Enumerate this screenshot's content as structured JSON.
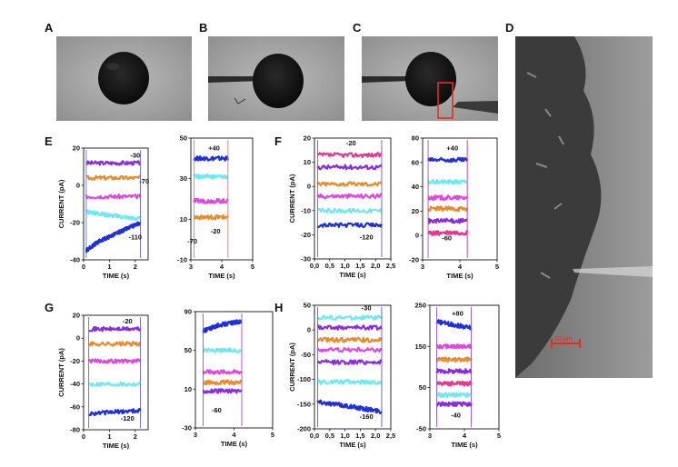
{
  "panel_labels": {
    "A": "A",
    "B": "B",
    "C": "C",
    "D": "D",
    "E": "E",
    "F": "F",
    "G": "G",
    "H": "H"
  },
  "scale_bar": "10 µm",
  "colors": {
    "navy": "#1f2fd9",
    "cyan": "#6ee9ef",
    "magenta": "#e046e0",
    "orange": "#ea8a2b",
    "violet": "#8a2be2",
    "pink": "#e03a8f",
    "red": "#e0301e"
  },
  "chart_data": [
    {
      "id": "E-left",
      "type": "line",
      "xlabel": "TIME (s)",
      "ylabel": "CURRENT (pA)",
      "xlim": [
        0,
        2.5
      ],
      "ylim": [
        -40,
        20
      ],
      "xticks": [
        "0",
        "1",
        "2"
      ],
      "xtickvals": [
        0,
        1,
        2
      ],
      "yticks": [
        "-40",
        "-20",
        "0",
        "20"
      ],
      "ytickvals": [
        -40,
        -20,
        0,
        20
      ],
      "annotations": [
        {
          "text": "-30",
          "x": 2.0,
          "y": 15
        },
        {
          "text": "-70",
          "x": 2.35,
          "y": 1
        },
        {
          "text": "-110",
          "x": 2.0,
          "y": -29
        }
      ],
      "series": [
        {
          "color": "violet",
          "points": [
            [
              0.1,
              12
            ],
            [
              2.2,
              12
            ]
          ]
        },
        {
          "color": "orange",
          "points": [
            [
              0.1,
              4
            ],
            [
              2.2,
              4
            ]
          ]
        },
        {
          "color": "magenta",
          "points": [
            [
              0.1,
              -6
            ],
            [
              2.2,
              -6
            ]
          ]
        },
        {
          "color": "cyan",
          "points": [
            [
              0.1,
              -14
            ],
            [
              1.0,
              -16
            ],
            [
              2.2,
              -18
            ]
          ]
        },
        {
          "color": "navy",
          "points": [
            [
              0.1,
              -35
            ],
            [
              0.6,
              -30
            ],
            [
              1.4,
              -25
            ],
            [
              2.2,
              -20
            ]
          ]
        }
      ]
    },
    {
      "id": "E-right",
      "type": "line",
      "xlabel": "TIME (s)",
      "ylabel": "",
      "xlim": [
        3,
        5
      ],
      "ylim": [
        -10,
        50
      ],
      "xticks": [
        "3",
        "4",
        "5"
      ],
      "xtickvals": [
        3,
        4,
        5
      ],
      "yticks": [
        "-10",
        "10",
        "30",
        "50"
      ],
      "ytickvals": [
        -10,
        10,
        30,
        50
      ],
      "annotations": [
        {
          "text": "+40",
          "x": 3.75,
          "y": 44
        },
        {
          "text": "-70",
          "x": 3.05,
          "y": -2
        },
        {
          "text": "-20",
          "x": 3.8,
          "y": 3
        }
      ],
      "series": [
        {
          "color": "navy",
          "points": [
            [
              3.1,
              40
            ],
            [
              4.2,
              40
            ]
          ]
        },
        {
          "color": "cyan",
          "points": [
            [
              3.1,
              31
            ],
            [
              4.2,
              31
            ]
          ]
        },
        {
          "color": "magenta",
          "points": [
            [
              3.1,
              19
            ],
            [
              4.2,
              19
            ]
          ]
        },
        {
          "color": "orange",
          "points": [
            [
              3.1,
              11
            ],
            [
              4.2,
              11
            ]
          ]
        }
      ]
    },
    {
      "id": "F-left",
      "type": "line",
      "xlabel": "TIME (s)",
      "ylabel": "CURRENT (pA)",
      "xlim": [
        0,
        2.5
      ],
      "ylim": [
        -30,
        20
      ],
      "xticks": [
        "0,0",
        "0,5",
        "1,0",
        "1,5",
        "2,0",
        "2,5"
      ],
      "xtickvals": [
        0,
        0.5,
        1,
        1.5,
        2,
        2.5
      ],
      "yticks": [
        "-30",
        "-20",
        "-10",
        "0",
        "10",
        "20"
      ],
      "ytickvals": [
        -30,
        -20,
        -10,
        0,
        10,
        20
      ],
      "annotations": [
        {
          "text": "-20",
          "x": 1.2,
          "y": 17
        },
        {
          "text": "-120",
          "x": 1.7,
          "y": -22
        }
      ],
      "series": [
        {
          "color": "pink",
          "points": [
            [
              0.1,
              13
            ],
            [
              2.2,
              13
            ]
          ]
        },
        {
          "color": "violet",
          "points": [
            [
              0.1,
              8
            ],
            [
              2.2,
              8
            ]
          ]
        },
        {
          "color": "orange",
          "points": [
            [
              0.1,
              1
            ],
            [
              2.2,
              1
            ]
          ]
        },
        {
          "color": "magenta",
          "points": [
            [
              0.1,
              -4
            ],
            [
              2.2,
              -4
            ]
          ]
        },
        {
          "color": "cyan",
          "points": [
            [
              0.1,
              -10
            ],
            [
              2.2,
              -10
            ]
          ]
        },
        {
          "color": "navy",
          "points": [
            [
              0.1,
              -16
            ],
            [
              2.2,
              -16
            ]
          ]
        }
      ]
    },
    {
      "id": "F-right",
      "type": "line",
      "xlabel": "TIME (s)",
      "ylabel": "",
      "xlim": [
        3,
        5
      ],
      "ylim": [
        -20,
        80
      ],
      "xticks": [
        "3",
        "4",
        "5"
      ],
      "xtickvals": [
        3,
        4,
        5
      ],
      "yticks": [
        "-20",
        "0",
        "20",
        "40",
        "60",
        "80"
      ],
      "ytickvals": [
        -20,
        0,
        20,
        40,
        60,
        80
      ],
      "annotations": [
        {
          "text": "+40",
          "x": 3.8,
          "y": 70
        },
        {
          "text": "-60",
          "x": 3.65,
          "y": -4
        }
      ],
      "series": [
        {
          "color": "navy",
          "points": [
            [
              3.15,
              62
            ],
            [
              4.2,
              62
            ]
          ]
        },
        {
          "color": "cyan",
          "points": [
            [
              3.15,
              44
            ],
            [
              4.2,
              44
            ]
          ]
        },
        {
          "color": "magenta",
          "points": [
            [
              3.15,
              31
            ],
            [
              4.2,
              31
            ]
          ]
        },
        {
          "color": "orange",
          "points": [
            [
              3.15,
              22
            ],
            [
              4.2,
              22
            ]
          ]
        },
        {
          "color": "violet",
          "points": [
            [
              3.15,
              12
            ],
            [
              4.2,
              12
            ]
          ]
        },
        {
          "color": "pink",
          "points": [
            [
              3.15,
              2
            ],
            [
              4.2,
              2
            ]
          ]
        }
      ]
    },
    {
      "id": "G-left",
      "type": "line",
      "xlabel": "TIME (s)",
      "ylabel": "CURRENT (pA)",
      "xlim": [
        0,
        2.5
      ],
      "ylim": [
        -80,
        20
      ],
      "xticks": [
        "0",
        "1",
        "2"
      ],
      "xtickvals": [
        0,
        1,
        2
      ],
      "yticks": [
        "-80",
        "-60",
        "-40",
        "-20",
        "0",
        "20"
      ],
      "ytickvals": [
        -80,
        -60,
        -40,
        -20,
        0,
        20
      ],
      "annotations": [
        {
          "text": "-20",
          "x": 1.7,
          "y": 13
        },
        {
          "text": "-120",
          "x": 1.7,
          "y": -72
        }
      ],
      "series": [
        {
          "color": "violet",
          "points": [
            [
              0.2,
              8
            ],
            [
              2.2,
              8
            ]
          ]
        },
        {
          "color": "orange",
          "points": [
            [
              0.2,
              -5
            ],
            [
              2.2,
              -5
            ]
          ]
        },
        {
          "color": "magenta",
          "points": [
            [
              0.2,
              -20
            ],
            [
              2.2,
              -20
            ]
          ]
        },
        {
          "color": "cyan",
          "points": [
            [
              0.2,
              -40
            ],
            [
              2.2,
              -40
            ]
          ]
        },
        {
          "color": "navy",
          "points": [
            [
              0.2,
              -66
            ],
            [
              2.2,
              -63
            ]
          ]
        }
      ]
    },
    {
      "id": "G-right",
      "type": "line",
      "xlabel": "TIME (s)",
      "ylabel": "",
      "xlim": [
        3,
        5
      ],
      "ylim": [
        -30,
        90
      ],
      "xticks": [
        "3",
        "4",
        "5"
      ],
      "xtickvals": [
        3,
        4,
        5
      ],
      "yticks": [
        "-30",
        "10",
        "50",
        "90"
      ],
      "ytickvals": [
        -30,
        10,
        50,
        90
      ],
      "annotations": [
        {
          "text": "-60",
          "x": 3.55,
          "y": -14
        }
      ],
      "series": [
        {
          "color": "navy",
          "points": [
            [
              3.2,
              70
            ],
            [
              3.6,
              76
            ],
            [
              4.2,
              80
            ]
          ]
        },
        {
          "color": "cyan",
          "points": [
            [
              3.2,
              50
            ],
            [
              4.2,
              50
            ]
          ]
        },
        {
          "color": "magenta",
          "points": [
            [
              3.2,
              28
            ],
            [
              4.2,
              28
            ]
          ]
        },
        {
          "color": "orange",
          "points": [
            [
              3.2,
              17
            ],
            [
              4.2,
              17
            ]
          ]
        },
        {
          "color": "violet",
          "points": [
            [
              3.2,
              8
            ],
            [
              4.2,
              8
            ]
          ]
        }
      ]
    },
    {
      "id": "H-left",
      "type": "line",
      "xlabel": "TIME (s)",
      "ylabel": "CURRENT (pA)",
      "xlim": [
        0,
        2.5
      ],
      "ylim": [
        -200,
        50
      ],
      "xticks": [
        "0,0",
        "0,5",
        "1,0",
        "1,5",
        "2,0",
        "2,5"
      ],
      "xtickvals": [
        0,
        0.5,
        1,
        1.5,
        2,
        2.5
      ],
      "yticks": [
        "-200",
        "-150",
        "-100",
        "-50",
        "0",
        "50"
      ],
      "ytickvals": [
        -200,
        -150,
        -100,
        -50,
        0,
        50
      ],
      "annotations": [
        {
          "text": "-30",
          "x": 1.7,
          "y": 40
        },
        {
          "text": "-160",
          "x": 1.7,
          "y": -180
        }
      ],
      "series": [
        {
          "color": "cyan",
          "points": [
            [
              0.1,
              25
            ],
            [
              2.2,
              25
            ]
          ]
        },
        {
          "color": "violet",
          "points": [
            [
              0.1,
              5
            ],
            [
              2.2,
              5
            ]
          ]
        },
        {
          "color": "orange",
          "points": [
            [
              0.1,
              -20
            ],
            [
              2.2,
              -20
            ]
          ]
        },
        {
          "color": "magenta",
          "points": [
            [
              0.1,
              -40
            ],
            [
              2.2,
              -40
            ]
          ]
        },
        {
          "color": "violet",
          "points": [
            [
              0.1,
              -65
            ],
            [
              2.2,
              -65
            ]
          ]
        },
        {
          "color": "cyan",
          "points": [
            [
              0.1,
              -105
            ],
            [
              2.2,
              -105
            ]
          ]
        },
        {
          "color": "navy",
          "points": [
            [
              0.1,
              -145
            ],
            [
              1.2,
              -155
            ],
            [
              2.2,
              -165
            ]
          ]
        }
      ]
    },
    {
      "id": "H-right",
      "type": "line",
      "xlabel": "TIME (s)",
      "ylabel": "",
      "xlim": [
        3,
        5
      ],
      "ylim": [
        -50,
        250
      ],
      "xticks": [
        "3",
        "4",
        "5"
      ],
      "xtickvals": [
        3,
        4,
        5
      ],
      "yticks": [
        "-50",
        "50",
        "150",
        "250"
      ],
      "ytickvals": [
        -50,
        50,
        150,
        250
      ],
      "annotations": [
        {
          "text": "+80",
          "x": 3.8,
          "y": 225
        },
        {
          "text": "-40",
          "x": 3.75,
          "y": -22
        }
      ],
      "series": [
        {
          "color": "navy",
          "points": [
            [
              3.2,
              210
            ],
            [
              4.2,
              195
            ]
          ]
        },
        {
          "color": "magenta",
          "points": [
            [
              3.2,
              150
            ],
            [
              4.2,
              150
            ]
          ]
        },
        {
          "color": "orange",
          "points": [
            [
              3.2,
              118
            ],
            [
              4.2,
              118
            ]
          ]
        },
        {
          "color": "violet",
          "points": [
            [
              3.2,
              90
            ],
            [
              4.2,
              90
            ]
          ]
        },
        {
          "color": "pink",
          "points": [
            [
              3.2,
              60
            ],
            [
              4.2,
              60
            ]
          ]
        },
        {
          "color": "cyan",
          "points": [
            [
              3.2,
              32
            ],
            [
              4.2,
              32
            ]
          ]
        },
        {
          "color": "violet",
          "points": [
            [
              3.2,
              10
            ],
            [
              4.2,
              10
            ]
          ]
        }
      ]
    }
  ]
}
